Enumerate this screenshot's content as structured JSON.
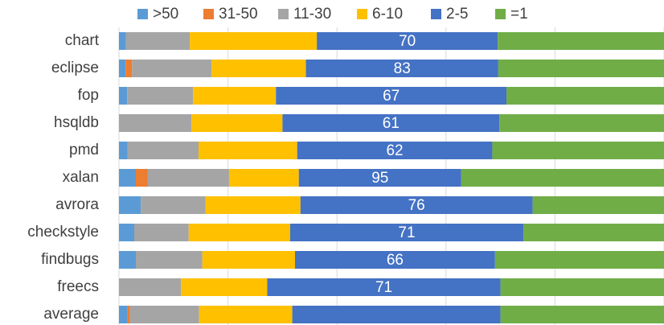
{
  "chart_data": {
    "type": "stacked_barh",
    "categories": [
      "chart",
      "eclipse",
      "fop",
      "hsqldb",
      "pmd",
      "xalan",
      "avrora",
      "checkstyle",
      "findbugs",
      "freecs",
      "average"
    ],
    "series": [
      {
        "name": ">50",
        "color": "#5b9bd5",
        "values": [
          1.3,
          1.2,
          1.5,
          0,
          1.6,
          3.1,
          4.0,
          2.8,
          3.1,
          0,
          1.6
        ]
      },
      {
        "name": "31-50",
        "color": "#ed7d31",
        "values": [
          0,
          1.2,
          0,
          0,
          0,
          2.2,
          0,
          0,
          0,
          0,
          0.4
        ]
      },
      {
        "name": "11-30",
        "color": "#a5a5a5",
        "values": [
          11.7,
          14.6,
          12.1,
          13.3,
          13.0,
          14.9,
          11.9,
          10.0,
          12.2,
          11.4,
          12.7
        ]
      },
      {
        "name": "6-10",
        "color": "#ffc000",
        "values": [
          23.3,
          17.3,
          15.2,
          16.7,
          18.1,
          12.8,
          17.4,
          18.6,
          17.0,
          15.8,
          17.1
        ]
      },
      {
        "name": "2-5",
        "color": "#4472c4",
        "values": [
          33.2,
          35.3,
          42.3,
          39.8,
          35.8,
          29.8,
          42.6,
          42.8,
          36.7,
          42.8,
          38.2
        ],
        "data_labels": [
          70,
          83,
          67,
          61,
          62,
          95,
          76,
          71,
          66,
          71,
          null
        ]
      },
      {
        "name": "=1",
        "color": "#70ad47",
        "values": [
          30.5,
          30.4,
          28.9,
          30.2,
          31.5,
          37.2,
          24.1,
          25.8,
          31.0,
          30.0,
          30.0
        ]
      }
    ],
    "xlim": [
      0,
      100
    ],
    "xticks": [
      0,
      20,
      40,
      60,
      80,
      100
    ],
    "grid": true
  }
}
